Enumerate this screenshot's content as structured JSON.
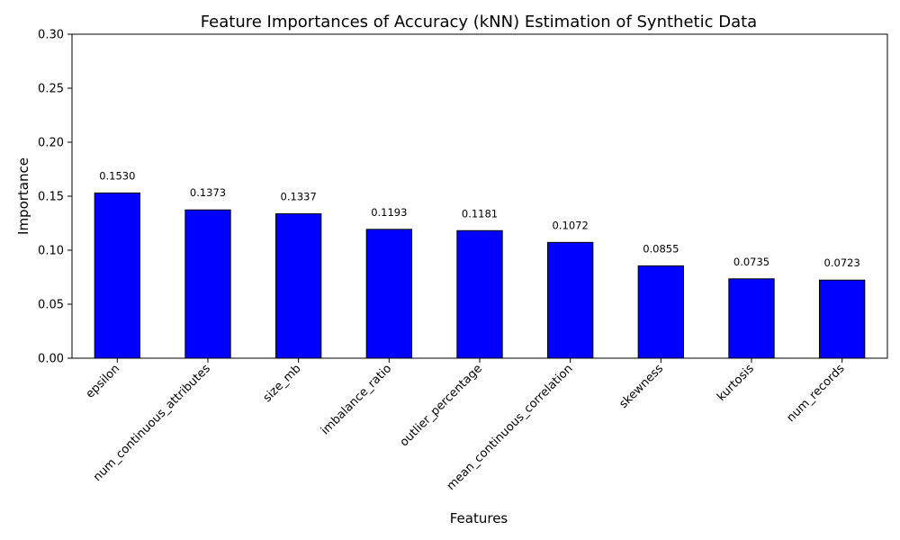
{
  "chart_data": {
    "type": "bar",
    "title": "Feature Importances of Accuracy (kNN) Estimation of Synthetic Data",
    "xlabel": "Features",
    "ylabel": "Importance",
    "categories": [
      "epsilon",
      "num_continuous_attributes",
      "size_mb",
      "imbalance_ratio",
      "outlier_percentage",
      "mean_continuous_correlation",
      "skewness",
      "kurtosis",
      "num_records"
    ],
    "values": [
      0.153,
      0.1373,
      0.1337,
      0.1193,
      0.1181,
      0.1072,
      0.0855,
      0.0735,
      0.0723
    ],
    "value_labels": [
      "0.1530",
      "0.1373",
      "0.1337",
      "0.1193",
      "0.1181",
      "0.1072",
      "0.0855",
      "0.0735",
      "0.0723"
    ],
    "ylim": [
      0,
      0.3
    ],
    "yticks": [
      "0.00",
      "0.05",
      "0.10",
      "0.15",
      "0.20",
      "0.25",
      "0.30"
    ],
    "grid": false,
    "bar_color": "#0000ff",
    "bar_edge_color": "#000000"
  }
}
